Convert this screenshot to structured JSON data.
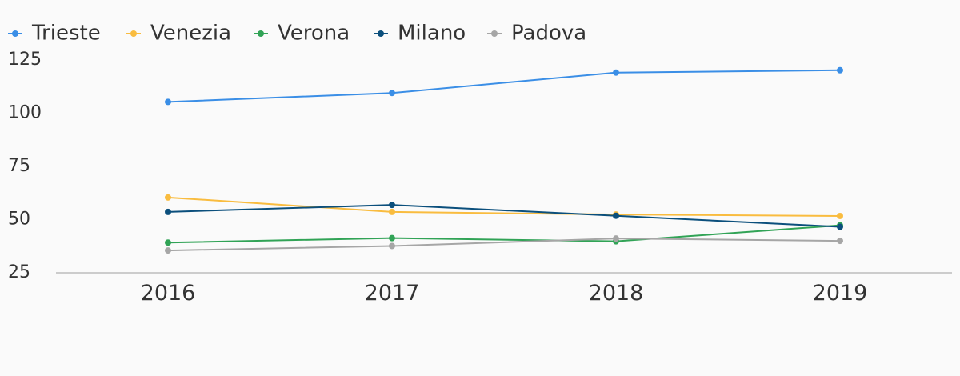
{
  "chart_data": {
    "type": "line",
    "title": "",
    "xlabel": "",
    "ylabel": "",
    "categories": [
      "2016",
      "2017",
      "2018",
      "2019"
    ],
    "ylim": [
      25,
      125
    ],
    "yticks": [
      25,
      50,
      75,
      100,
      125
    ],
    "grid": false,
    "legend": "top-left",
    "series": [
      {
        "name": "Trieste",
        "color": "#3a8ee6",
        "values": [
          105.3,
          109.5,
          119.1,
          120.2
        ]
      },
      {
        "name": "Venezia",
        "color": "#f9bc3f",
        "values": [
          60.4,
          53.6,
          52.4,
          51.7
        ]
      },
      {
        "name": "Verona",
        "color": "#31a356",
        "values": [
          39.2,
          41.3,
          39.8,
          47.3
        ]
      },
      {
        "name": "Milano",
        "color": "#0b4f7c",
        "values": [
          53.6,
          56.9,
          51.8,
          46.6
        ]
      },
      {
        "name": "Padova",
        "color": "#a6a6a6",
        "values": [
          35.5,
          37.6,
          41.1,
          40.0
        ]
      }
    ]
  }
}
